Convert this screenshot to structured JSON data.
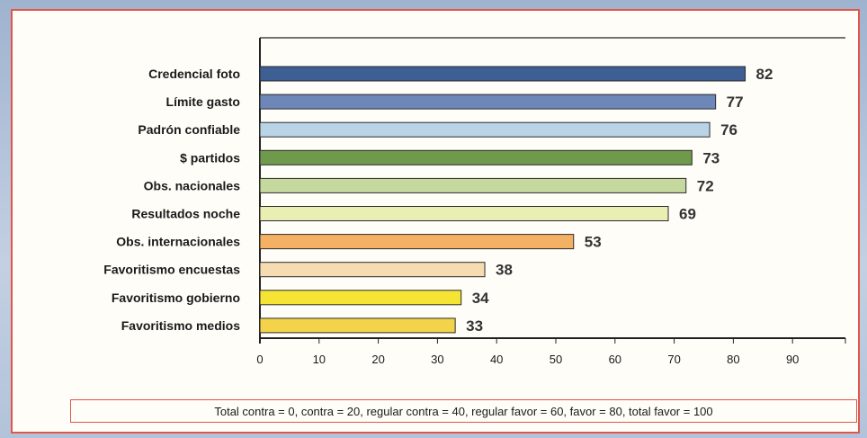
{
  "chart_data": {
    "type": "bar",
    "orientation": "horizontal",
    "categories": [
      "Credencial foto",
      "Límite gasto",
      "Padrón confiable",
      "$ partidos",
      "Obs. nacionales",
      "Resultados noche",
      "Obs. internacionales",
      "Favoritismo encuestas",
      "Favoritismo gobierno",
      "Favoritismo medios"
    ],
    "values": [
      82,
      77,
      76,
      73,
      72,
      69,
      53,
      38,
      34,
      33
    ],
    "value_labels": [
      "82",
      "77",
      "76",
      "73",
      "72",
      "69",
      "53",
      "38",
      "34",
      "33"
    ],
    "bar_colors": [
      "#3d5f93",
      "#6d87b8",
      "#b9d3e7",
      "#6f9a4c",
      "#c5d99e",
      "#e9eeb3",
      "#f4b063",
      "#f6dcb1",
      "#f6e435",
      "#f2d34a"
    ],
    "value_label_colors": [
      "#333333",
      "#333333",
      "#333333",
      "#333333",
      "#333333",
      "#333333",
      "#a8324a",
      "#333333",
      "#333333",
      "#333333"
    ],
    "xlim": [
      0,
      100
    ],
    "xticks": [
      0,
      10,
      20,
      30,
      40,
      50,
      60,
      70,
      80,
      90
    ],
    "grid": false,
    "legend": "none",
    "title": "",
    "xlabel": "",
    "ylabel": ""
  },
  "footnote": "Total contra = 0, contra = 20, regular contra = 40, regular favor = 60, favor = 80, total favor = 100"
}
